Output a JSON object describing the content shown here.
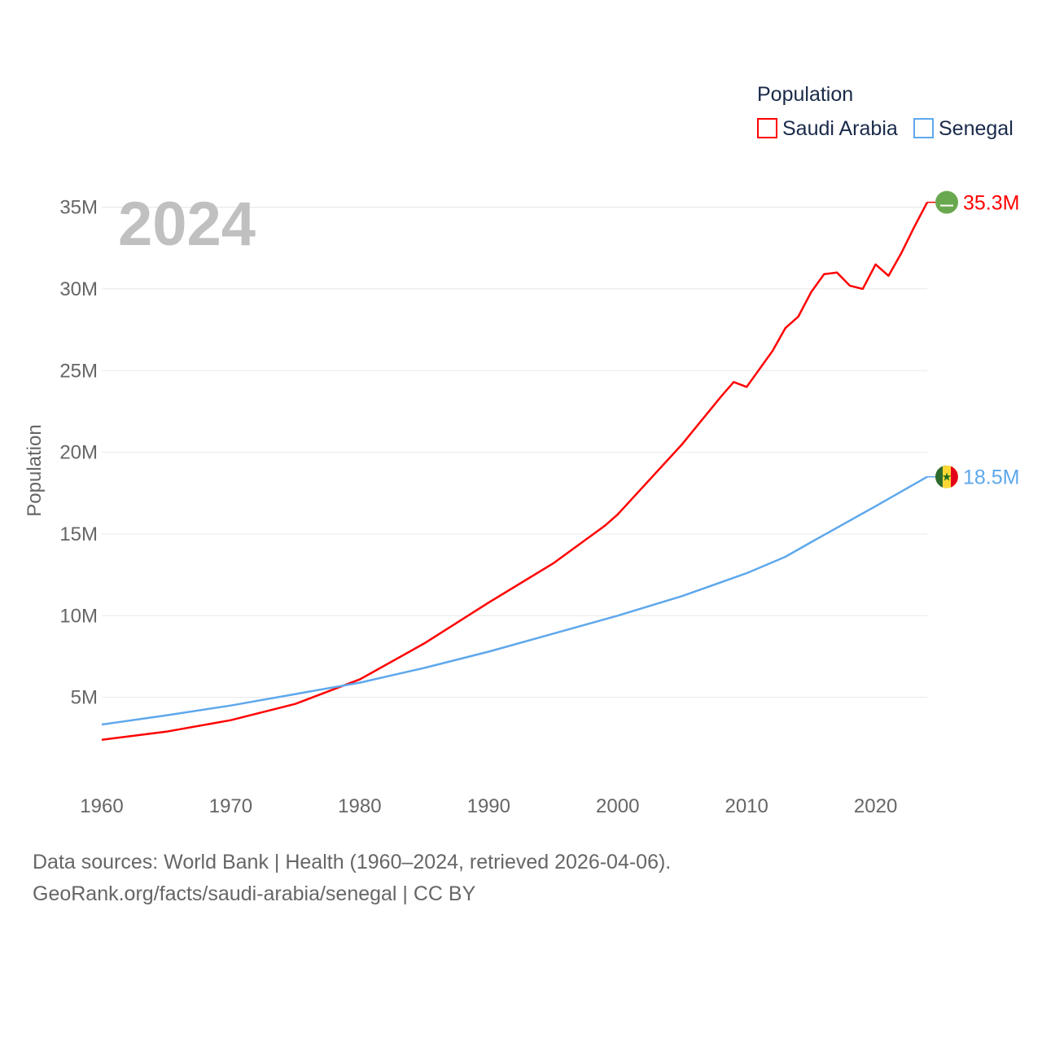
{
  "chart_data": {
    "type": "line",
    "title": "",
    "watermark_year": "2024",
    "ylabel": "Population",
    "xlabel": "",
    "xlim": [
      1960,
      2024
    ],
    "ylim": [
      0,
      35000000
    ],
    "x_ticks": [
      1960,
      1970,
      1980,
      1990,
      2000,
      2010,
      2020
    ],
    "x_tick_labels": [
      "1960",
      "1970",
      "1980",
      "1990",
      "2000",
      "2010",
      "2020"
    ],
    "y_ticks": [
      5000000,
      10000000,
      15000000,
      20000000,
      25000000,
      30000000,
      35000000
    ],
    "y_tick_labels": [
      "5M",
      "10M",
      "15M",
      "20M",
      "25M",
      "30M",
      "35M"
    ],
    "grid": true,
    "legend": {
      "title": "Population",
      "placement": "top-right"
    },
    "series": [
      {
        "name": "Saudi Arabia",
        "color": "#ff0000",
        "end_label": "35.3M",
        "flag": "saudi-arabia-flag",
        "x": [
          1960,
          1965,
          1970,
          1975,
          1980,
          1985,
          1990,
          1995,
          1999,
          2000,
          2005,
          2008,
          2009,
          2010,
          2012,
          2013,
          2014,
          2015,
          2016,
          2017,
          2018,
          2019,
          2020,
          2021,
          2022,
          2023,
          2024
        ],
        "y": [
          2.4,
          2.9,
          3.6,
          4.6,
          6.1,
          8.3,
          10.8,
          13.2,
          15.5,
          16.2,
          20.5,
          23.4,
          24.3,
          24.0,
          26.2,
          27.6,
          28.3,
          29.8,
          30.9,
          31.0,
          30.2,
          30.0,
          31.5,
          30.8,
          32.2,
          33.8,
          35.3
        ]
      },
      {
        "name": "Senegal",
        "color": "#5ea8ec",
        "end_label": "18.5M",
        "flag": "senegal-flag",
        "x": [
          1960,
          1965,
          1970,
          1975,
          1980,
          1985,
          1990,
          1995,
          2000,
          2005,
          2010,
          2013,
          2015,
          2020,
          2024
        ],
        "y": [
          3.34,
          3.9,
          4.5,
          5.2,
          5.9,
          6.8,
          7.8,
          8.9,
          10.0,
          11.2,
          12.6,
          13.6,
          14.5,
          16.7,
          18.5
        ]
      }
    ]
  },
  "footer": {
    "line1": "Data sources: World Bank | Health (1960–2024, retrieved 2026-04-06).",
    "line2": "GeoRank.org/facts/saudi-arabia/senegal | CC BY"
  }
}
